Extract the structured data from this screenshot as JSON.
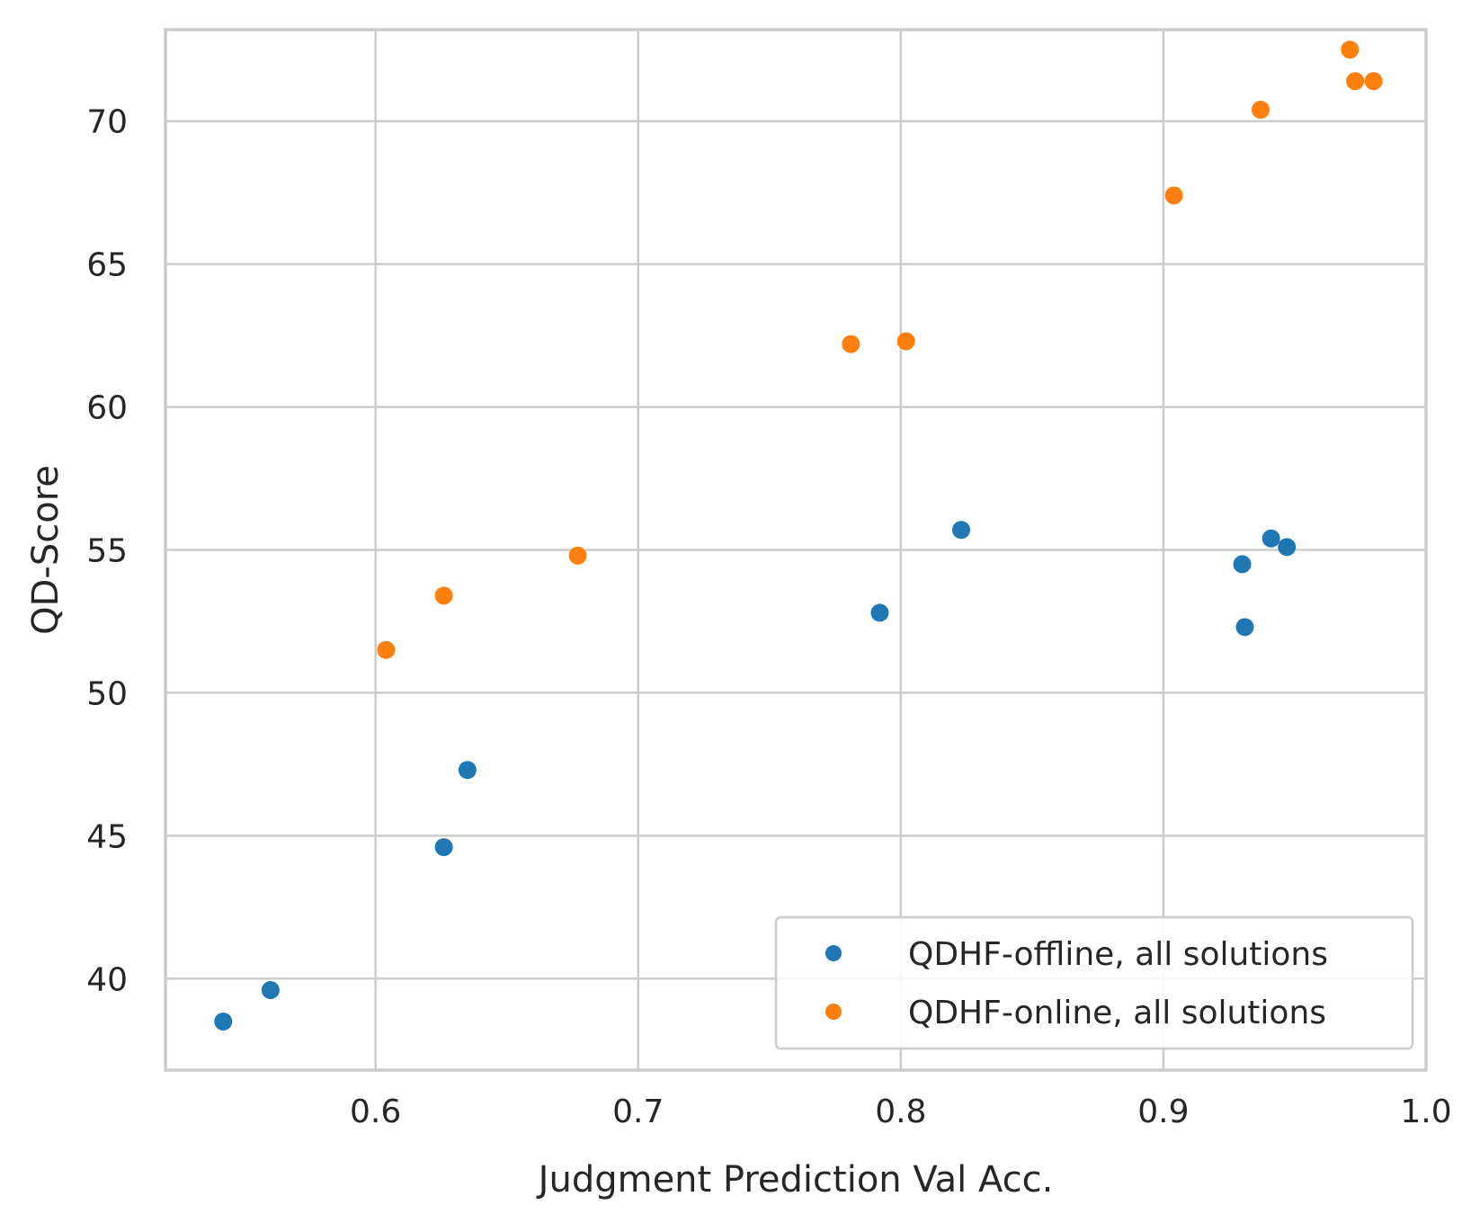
{
  "chart_data": {
    "type": "scatter",
    "title": "",
    "xlabel": "Judgment Prediction Val Acc.",
    "ylabel": "QD-Score",
    "xlim": [
      0.52,
      1.0
    ],
    "ylim": [
      36.8,
      73.2
    ],
    "xticks": [
      0.6,
      0.7,
      0.8,
      0.9,
      1.0
    ],
    "xtick_labels": [
      "0.6",
      "0.7",
      "0.8",
      "0.9",
      "1.0"
    ],
    "yticks": [
      40,
      45,
      50,
      55,
      60,
      65,
      70
    ],
    "ytick_labels": [
      "40",
      "45",
      "50",
      "55",
      "60",
      "65",
      "70"
    ],
    "grid": true,
    "legend_position": "bottom-right",
    "series": [
      {
        "name": "QDHF-offline, all solutions",
        "color": "#1f77b4",
        "points": [
          {
            "x": 0.542,
            "y": 38.5
          },
          {
            "x": 0.56,
            "y": 39.6
          },
          {
            "x": 0.626,
            "y": 44.6
          },
          {
            "x": 0.635,
            "y": 47.3
          },
          {
            "x": 0.792,
            "y": 52.8
          },
          {
            "x": 0.823,
            "y": 55.7
          },
          {
            "x": 0.93,
            "y": 54.5
          },
          {
            "x": 0.931,
            "y": 52.3
          },
          {
            "x": 0.941,
            "y": 55.4
          },
          {
            "x": 0.947,
            "y": 55.1
          }
        ]
      },
      {
        "name": "QDHF-online, all solutions",
        "color": "#ff7f0e",
        "points": [
          {
            "x": 0.604,
            "y": 51.5
          },
          {
            "x": 0.626,
            "y": 53.4
          },
          {
            "x": 0.677,
            "y": 54.8
          },
          {
            "x": 0.781,
            "y": 62.2
          },
          {
            "x": 0.802,
            "y": 62.3
          },
          {
            "x": 0.904,
            "y": 67.4
          },
          {
            "x": 0.937,
            "y": 70.4
          },
          {
            "x": 0.971,
            "y": 72.5
          },
          {
            "x": 0.973,
            "y": 71.4
          },
          {
            "x": 0.98,
            "y": 71.4
          }
        ]
      }
    ]
  }
}
